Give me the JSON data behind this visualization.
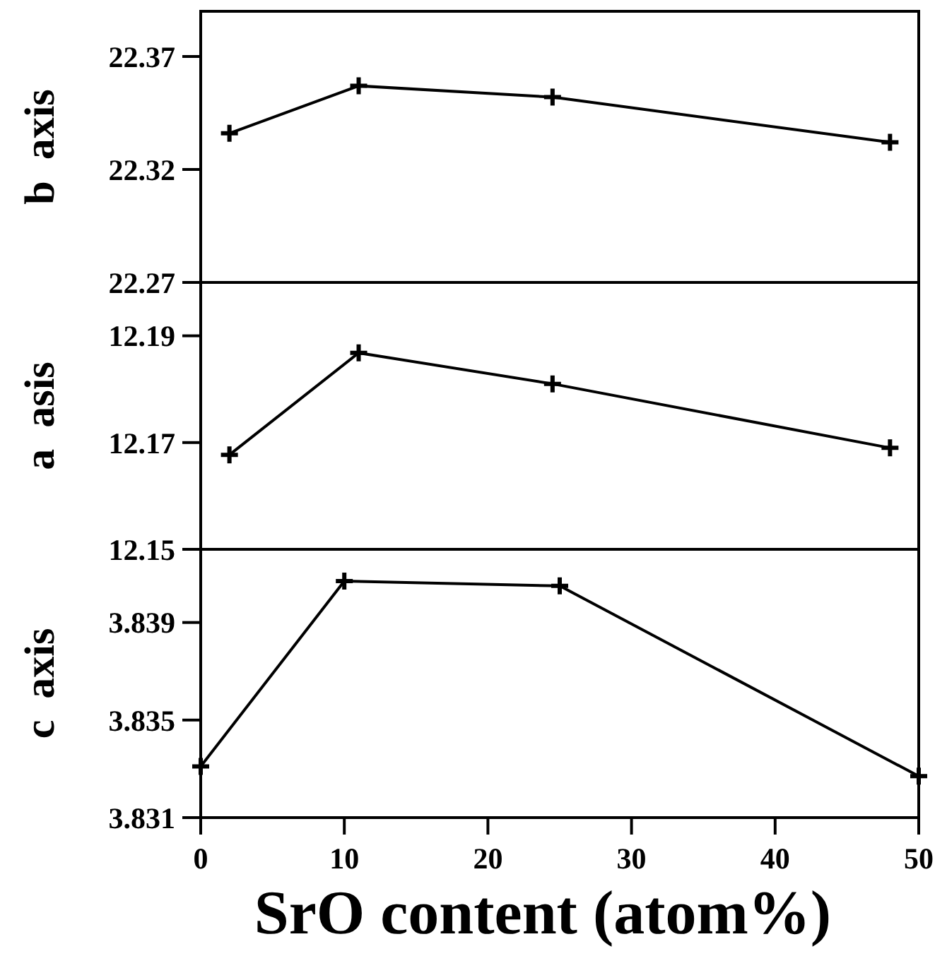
{
  "chart_data": [
    {
      "type": "line",
      "ylabel": "b  axis",
      "x": [
        2,
        11,
        24.5,
        48
      ],
      "xlim": [
        0,
        50
      ],
      "ylim": [
        22.27,
        22.39
      ],
      "yticks": [
        22.27,
        22.32,
        22.37
      ],
      "tick_labels": "y",
      "marker": "cross",
      "line_style": "solid",
      "grid": false,
      "series": [
        {
          "color": "#000000",
          "values": [
            22.336,
            22.357,
            22.352,
            22.332
          ]
        }
      ]
    },
    {
      "type": "line",
      "ylabel": "a  asis",
      "x": [
        2,
        11,
        24.5,
        48
      ],
      "xlim": [
        0,
        50
      ],
      "ylim": [
        12.15,
        12.2
      ],
      "yticks": [
        12.15,
        12.17,
        12.19
      ],
      "tick_labels": "y",
      "marker": "cross",
      "line_style": "solid",
      "grid": false,
      "series": [
        {
          "color": "#000000",
          "values": [
            12.1677,
            12.1868,
            12.181,
            12.169
          ]
        }
      ]
    },
    {
      "type": "line",
      "ylabel": "c  axis",
      "xlabel": "SrO content (atom%)",
      "x": [
        0,
        10,
        25,
        50
      ],
      "xlim": [
        0,
        50
      ],
      "xticks": [
        0,
        10,
        20,
        30,
        40,
        50
      ],
      "ylim": [
        3.831,
        3.842
      ],
      "yticks": [
        3.831,
        3.835,
        3.839
      ],
      "marker": "cross",
      "line_style": "solid",
      "grid": false,
      "series": [
        {
          "color": "#000000",
          "values": [
            3.8331,
            3.8407,
            3.8405,
            3.8327
          ]
        }
      ]
    }
  ]
}
